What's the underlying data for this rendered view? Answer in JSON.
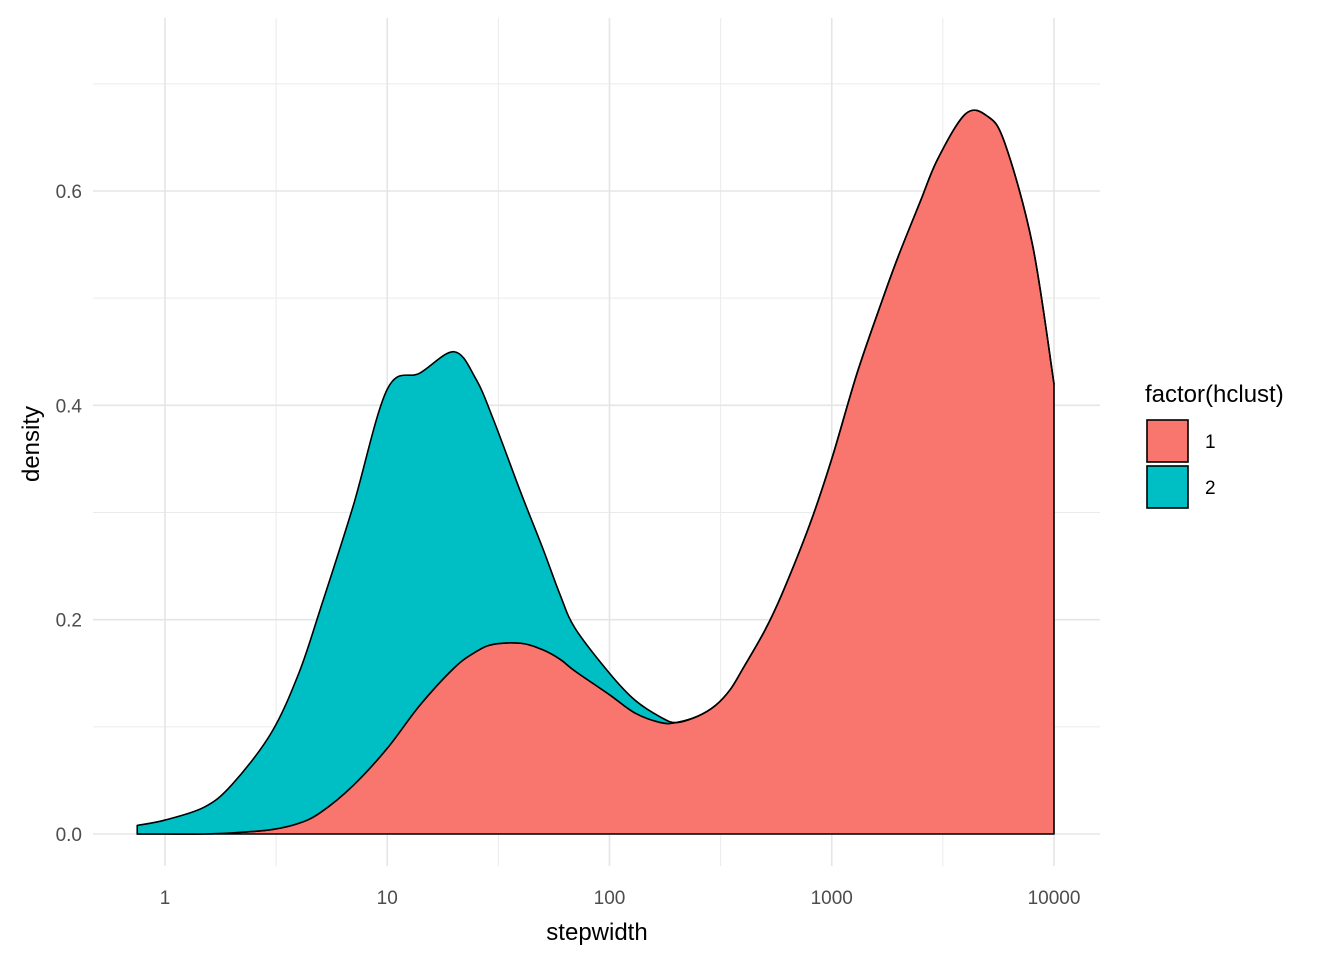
{
  "chart_data": {
    "type": "area",
    "subtype": "stacked-density",
    "xlabel": "stepwidth",
    "ylabel": "density",
    "x_scale": "log10",
    "xlim": [
      0.75,
      10000
    ],
    "ylim": [
      0,
      0.72
    ],
    "x_ticks": [
      1,
      10,
      100,
      1000,
      10000
    ],
    "x_tick_labels": [
      "1",
      "10",
      "100",
      "1000",
      "10000"
    ],
    "y_ticks": [
      0.0,
      0.2,
      0.4,
      0.6
    ],
    "y_tick_labels": [
      "0.0",
      "0.2",
      "0.4",
      "0.6"
    ],
    "grid": true,
    "legend": {
      "title": "factor(hclust)",
      "position": "right",
      "entries": [
        {
          "label": "1",
          "color": "#F8766D"
        },
        {
          "label": "2",
          "color": "#00BFC4"
        }
      ]
    },
    "x": [
      0.75,
      1,
      1.5,
      2,
      3,
      4,
      5,
      7,
      10,
      14,
      20,
      25,
      30,
      40,
      50,
      60,
      70,
      100,
      130,
      170,
      200,
      250,
      300,
      350,
      400,
      500,
      600,
      800,
      1000,
      1300,
      1700,
      2000,
      2500,
      3000,
      4000,
      5000,
      6000,
      8000,
      10000
    ],
    "series": [
      {
        "name": "1",
        "color": "#F8766D",
        "values": [
          0.0,
          0.0,
          0.0,
          0.001,
          0.004,
          0.01,
          0.02,
          0.045,
          0.08,
          0.12,
          0.155,
          0.17,
          0.177,
          0.178,
          0.172,
          0.163,
          0.152,
          0.13,
          0.113,
          0.104,
          0.104,
          0.11,
          0.12,
          0.135,
          0.155,
          0.19,
          0.225,
          0.29,
          0.35,
          0.43,
          0.5,
          0.54,
          0.59,
          0.63,
          0.672,
          0.67,
          0.645,
          0.55,
          0.42
        ]
      },
      {
        "name": "2",
        "color": "#00BFC4",
        "values": [
          0.008,
          0.013,
          0.025,
          0.045,
          0.09,
          0.14,
          0.19,
          0.26,
          0.335,
          0.31,
          0.295,
          0.255,
          0.21,
          0.14,
          0.095,
          0.06,
          0.04,
          0.02,
          0.012,
          0.005,
          0.0,
          0.0,
          0.0,
          0.0,
          0.0,
          0.0,
          0.0,
          0.0,
          0.0,
          0.0,
          0.0,
          0.0,
          0.0,
          0.0,
          0.0,
          0.0,
          0.0,
          0.0,
          0.0
        ]
      }
    ]
  }
}
